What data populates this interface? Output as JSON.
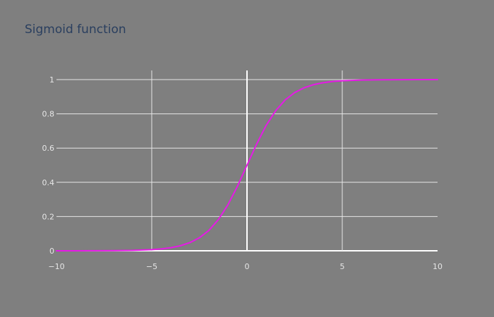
{
  "chart_data": {
    "type": "line",
    "title": "Sigmoid function",
    "xlabel": "",
    "ylabel": "",
    "xlim": [
      -10,
      10
    ],
    "ylim": [
      0,
      1
    ],
    "x_ticks": [
      -10,
      -5,
      0,
      5,
      10
    ],
    "x_tick_labels": [
      "−10",
      "−5",
      "0",
      "5",
      "10"
    ],
    "y_ticks": [
      0,
      0.2,
      0.4,
      0.6,
      0.8,
      1
    ],
    "y_tick_labels": [
      "0",
      "0.2",
      "0.4",
      "0.6",
      "0.8",
      "1"
    ],
    "grid": true,
    "legend": "none",
    "series": [
      {
        "color": "#e619e6",
        "x": [
          -10,
          -9,
          -8,
          -7,
          -6,
          -5,
          -4.5,
          -4,
          -3.5,
          -3,
          -2.5,
          -2,
          -1.5,
          -1,
          -0.5,
          0,
          0.5,
          1,
          1.5,
          2,
          2.5,
          3,
          3.5,
          4,
          4.5,
          5,
          6,
          7,
          8,
          9,
          10
        ],
        "y": [
          5e-05,
          0.00012,
          0.00034,
          0.00091,
          0.00247,
          0.00669,
          0.01099,
          0.01799,
          0.02931,
          0.04743,
          0.07586,
          0.1192,
          0.18243,
          0.26894,
          0.37754,
          0.5,
          0.62246,
          0.73106,
          0.81757,
          0.8808,
          0.92414,
          0.95257,
          0.97069,
          0.98201,
          0.98901,
          0.99331,
          0.99753,
          0.99909,
          0.99966,
          0.99988,
          0.99995
        ]
      }
    ]
  },
  "colors": {
    "background": "#7f7f7f",
    "grid": "#e6e6e6",
    "zeroline": "#ffffff",
    "title": "#2a3f5f",
    "tick_text": "#e6e6e6"
  }
}
